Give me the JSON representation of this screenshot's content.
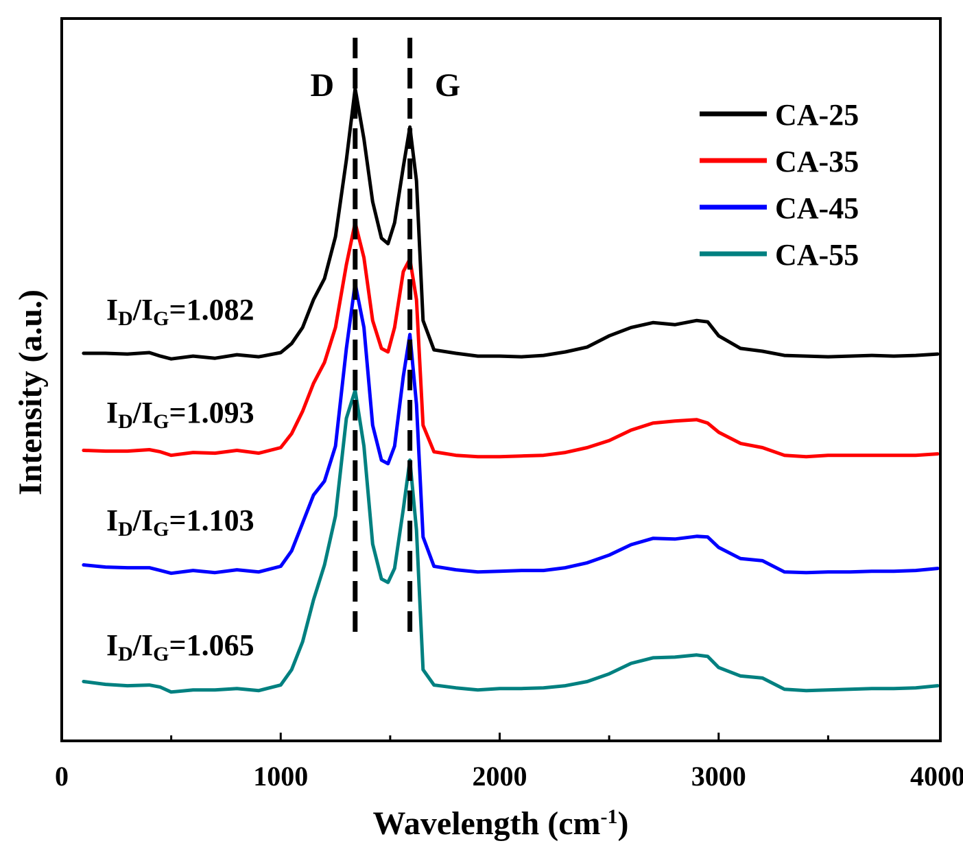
{
  "chart_data": {
    "type": "line",
    "title": "",
    "xlabel": "Wavelength (cm",
    "xlabel_sup": "-1",
    "xlabel_close": ")",
    "ylabel": "Intensity (a.u.)",
    "xlim": [
      0,
      4000
    ],
    "ylim": [
      0,
      1
    ],
    "x_ticks": [
      "0",
      "1000",
      "2000",
      "3000",
      "4000"
    ],
    "grid": false,
    "legend_position": "top-right",
    "peak_markers": [
      {
        "label": "D",
        "x": 1340
      },
      {
        "label": "G",
        "x": 1590
      }
    ],
    "ratio_prefix": "I",
    "ratio_sub_d": "D",
    "ratio_slash": "/I",
    "ratio_sub_g": "G",
    "series": [
      {
        "name": "CA-25",
        "color": "#000000",
        "ratio": "=1.082",
        "points": [
          [
            100,
            0.553
          ],
          [
            200,
            0.553
          ],
          [
            300,
            0.552
          ],
          [
            400,
            0.554
          ],
          [
            450,
            0.549
          ],
          [
            500,
            0.545
          ],
          [
            600,
            0.549
          ],
          [
            700,
            0.546
          ],
          [
            800,
            0.551
          ],
          [
            900,
            0.548
          ],
          [
            1000,
            0.554
          ],
          [
            1050,
            0.567
          ],
          [
            1100,
            0.59
          ],
          [
            1150,
            0.63
          ],
          [
            1200,
            0.66
          ],
          [
            1250,
            0.72
          ],
          [
            1300,
            0.83
          ],
          [
            1340,
            0.932
          ],
          [
            1380,
            0.86
          ],
          [
            1420,
            0.77
          ],
          [
            1460,
            0.718
          ],
          [
            1490,
            0.71
          ],
          [
            1520,
            0.74
          ],
          [
            1560,
            0.82
          ],
          [
            1590,
            0.877
          ],
          [
            1620,
            0.8
          ],
          [
            1650,
            0.6
          ],
          [
            1700,
            0.558
          ],
          [
            1800,
            0.553
          ],
          [
            1900,
            0.549
          ],
          [
            2000,
            0.549
          ],
          [
            2100,
            0.548
          ],
          [
            2200,
            0.55
          ],
          [
            2300,
            0.555
          ],
          [
            2400,
            0.562
          ],
          [
            2500,
            0.578
          ],
          [
            2600,
            0.59
          ],
          [
            2700,
            0.597
          ],
          [
            2800,
            0.594
          ],
          [
            2900,
            0.6
          ],
          [
            2950,
            0.598
          ],
          [
            3000,
            0.578
          ],
          [
            3100,
            0.56
          ],
          [
            3200,
            0.556
          ],
          [
            3300,
            0.55
          ],
          [
            3400,
            0.549
          ],
          [
            3500,
            0.548
          ],
          [
            3600,
            0.549
          ],
          [
            3700,
            0.55
          ],
          [
            3800,
            0.549
          ],
          [
            3900,
            0.55
          ],
          [
            4000,
            0.552
          ]
        ]
      },
      {
        "name": "CA-35",
        "color": "#ff0000",
        "ratio": "=1.093",
        "points": [
          [
            100,
            0.414
          ],
          [
            200,
            0.413
          ],
          [
            300,
            0.413
          ],
          [
            400,
            0.415
          ],
          [
            450,
            0.412
          ],
          [
            500,
            0.407
          ],
          [
            600,
            0.411
          ],
          [
            700,
            0.41
          ],
          [
            800,
            0.414
          ],
          [
            900,
            0.41
          ],
          [
            1000,
            0.418
          ],
          [
            1050,
            0.438
          ],
          [
            1100,
            0.47
          ],
          [
            1150,
            0.51
          ],
          [
            1200,
            0.54
          ],
          [
            1250,
            0.59
          ],
          [
            1300,
            0.68
          ],
          [
            1340,
            0.74
          ],
          [
            1380,
            0.69
          ],
          [
            1420,
            0.6
          ],
          [
            1460,
            0.56
          ],
          [
            1490,
            0.555
          ],
          [
            1520,
            0.59
          ],
          [
            1560,
            0.67
          ],
          [
            1590,
            0.688
          ],
          [
            1620,
            0.63
          ],
          [
            1650,
            0.45
          ],
          [
            1700,
            0.412
          ],
          [
            1800,
            0.407
          ],
          [
            1900,
            0.405
          ],
          [
            2000,
            0.405
          ],
          [
            2100,
            0.406
          ],
          [
            2200,
            0.407
          ],
          [
            2300,
            0.411
          ],
          [
            2400,
            0.418
          ],
          [
            2500,
            0.428
          ],
          [
            2600,
            0.443
          ],
          [
            2700,
            0.453
          ],
          [
            2800,
            0.456
          ],
          [
            2900,
            0.458
          ],
          [
            2950,
            0.453
          ],
          [
            3000,
            0.44
          ],
          [
            3100,
            0.424
          ],
          [
            3200,
            0.418
          ],
          [
            3300,
            0.407
          ],
          [
            3400,
            0.405
          ],
          [
            3500,
            0.407
          ],
          [
            3600,
            0.407
          ],
          [
            3700,
            0.407
          ],
          [
            3800,
            0.407
          ],
          [
            3900,
            0.407
          ],
          [
            4000,
            0.409
          ]
        ]
      },
      {
        "name": "CA-45",
        "color": "#0000ff",
        "ratio": "=1.103",
        "points": [
          [
            100,
            0.25
          ],
          [
            200,
            0.247
          ],
          [
            300,
            0.246
          ],
          [
            400,
            0.246
          ],
          [
            450,
            0.242
          ],
          [
            500,
            0.238
          ],
          [
            600,
            0.242
          ],
          [
            700,
            0.239
          ],
          [
            800,
            0.243
          ],
          [
            900,
            0.24
          ],
          [
            1000,
            0.248
          ],
          [
            1050,
            0.27
          ],
          [
            1100,
            0.31
          ],
          [
            1150,
            0.35
          ],
          [
            1200,
            0.37
          ],
          [
            1250,
            0.42
          ],
          [
            1300,
            0.56
          ],
          [
            1340,
            0.653
          ],
          [
            1380,
            0.59
          ],
          [
            1420,
            0.45
          ],
          [
            1460,
            0.4
          ],
          [
            1490,
            0.395
          ],
          [
            1520,
            0.42
          ],
          [
            1560,
            0.52
          ],
          [
            1590,
            0.58
          ],
          [
            1620,
            0.48
          ],
          [
            1650,
            0.29
          ],
          [
            1700,
            0.248
          ],
          [
            1800,
            0.243
          ],
          [
            1900,
            0.24
          ],
          [
            2000,
            0.241
          ],
          [
            2100,
            0.242
          ],
          [
            2200,
            0.242
          ],
          [
            2300,
            0.246
          ],
          [
            2400,
            0.253
          ],
          [
            2500,
            0.264
          ],
          [
            2600,
            0.279
          ],
          [
            2700,
            0.288
          ],
          [
            2800,
            0.287
          ],
          [
            2900,
            0.291
          ],
          [
            2950,
            0.29
          ],
          [
            3000,
            0.275
          ],
          [
            3100,
            0.259
          ],
          [
            3200,
            0.256
          ],
          [
            3300,
            0.24
          ],
          [
            3400,
            0.239
          ],
          [
            3500,
            0.24
          ],
          [
            3600,
            0.24
          ],
          [
            3700,
            0.241
          ],
          [
            3800,
            0.241
          ],
          [
            3900,
            0.242
          ],
          [
            4000,
            0.245
          ]
        ]
      },
      {
        "name": "CA-55",
        "color": "#008080",
        "ratio": "=1.065",
        "points": [
          [
            100,
            0.083
          ],
          [
            200,
            0.079
          ],
          [
            300,
            0.077
          ],
          [
            400,
            0.078
          ],
          [
            450,
            0.075
          ],
          [
            500,
            0.068
          ],
          [
            600,
            0.071
          ],
          [
            700,
            0.071
          ],
          [
            800,
            0.073
          ],
          [
            900,
            0.07
          ],
          [
            1000,
            0.078
          ],
          [
            1050,
            0.1
          ],
          [
            1100,
            0.14
          ],
          [
            1150,
            0.2
          ],
          [
            1200,
            0.25
          ],
          [
            1250,
            0.32
          ],
          [
            1300,
            0.46
          ],
          [
            1340,
            0.5
          ],
          [
            1380,
            0.42
          ],
          [
            1420,
            0.28
          ],
          [
            1460,
            0.23
          ],
          [
            1490,
            0.225
          ],
          [
            1520,
            0.245
          ],
          [
            1560,
            0.33
          ],
          [
            1590,
            0.4
          ],
          [
            1620,
            0.3
          ],
          [
            1650,
            0.1
          ],
          [
            1700,
            0.078
          ],
          [
            1800,
            0.074
          ],
          [
            1900,
            0.071
          ],
          [
            2000,
            0.073
          ],
          [
            2100,
            0.073
          ],
          [
            2200,
            0.074
          ],
          [
            2300,
            0.077
          ],
          [
            2400,
            0.083
          ],
          [
            2500,
            0.094
          ],
          [
            2600,
            0.109
          ],
          [
            2700,
            0.117
          ],
          [
            2800,
            0.118
          ],
          [
            2900,
            0.121
          ],
          [
            2950,
            0.119
          ],
          [
            3000,
            0.103
          ],
          [
            3100,
            0.091
          ],
          [
            3200,
            0.088
          ],
          [
            3300,
            0.072
          ],
          [
            3400,
            0.07
          ],
          [
            3500,
            0.071
          ],
          [
            3600,
            0.072
          ],
          [
            3700,
            0.073
          ],
          [
            3800,
            0.073
          ],
          [
            3900,
            0.074
          ],
          [
            4000,
            0.077
          ]
        ]
      }
    ]
  }
}
